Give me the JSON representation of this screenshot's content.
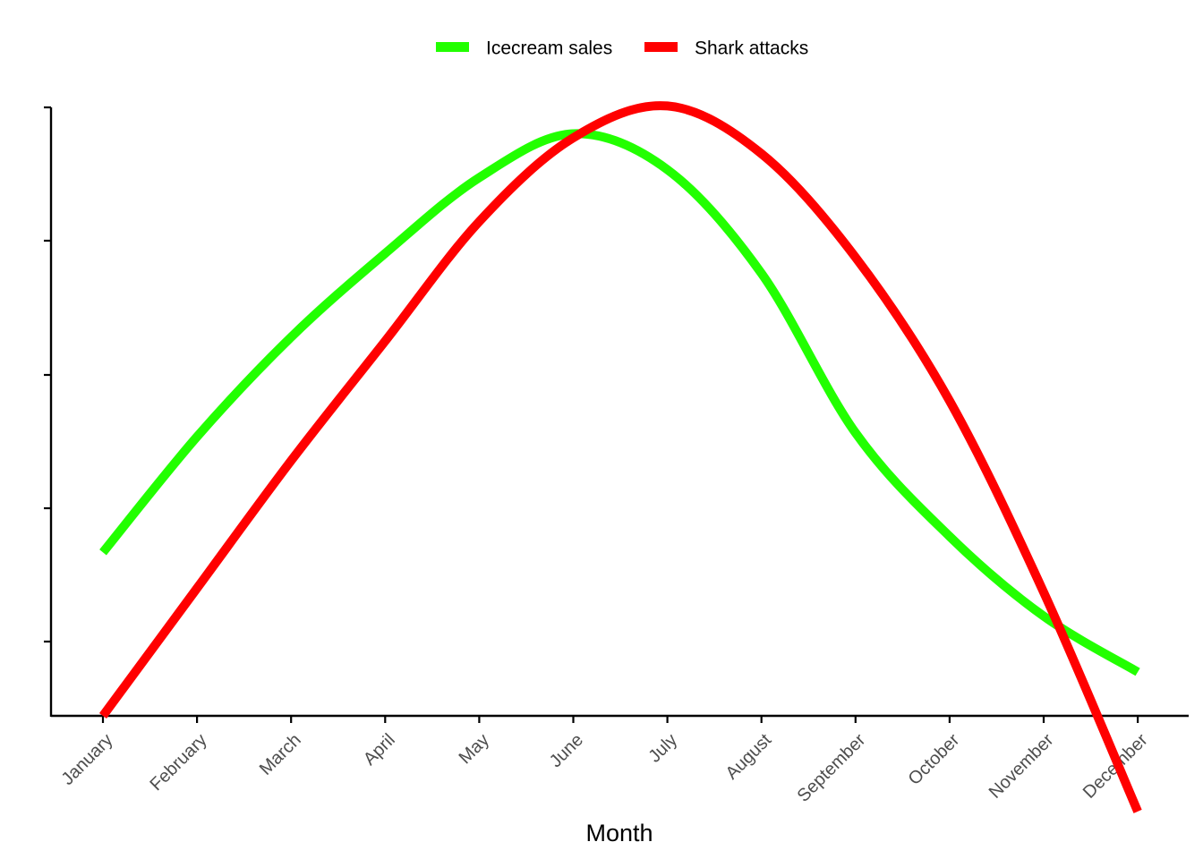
{
  "chart_data": {
    "type": "line",
    "title": "",
    "xlabel": "Month",
    "ylabel": "",
    "categories": [
      "January",
      "February",
      "March",
      "April",
      "May",
      "June",
      "July",
      "August",
      "September",
      "October",
      "November",
      "December"
    ],
    "y_tick_labels_visible": false,
    "y_tick_count": 5,
    "grid": false,
    "legend_position": "top",
    "series": [
      {
        "name": "Icecream sales",
        "color": "#22ff00",
        "values": [
          2.8,
          4.25,
          5.5,
          6.55,
          7.5,
          8.05,
          7.6,
          6.3,
          4.3,
          3.0,
          2.0,
          1.3
        ]
      },
      {
        "name": "Shark attacks",
        "color": "#ff0000",
        "values": [
          0.75,
          2.35,
          3.95,
          5.45,
          6.95,
          8.0,
          8.4,
          7.8,
          6.5,
          4.7,
          2.3,
          -0.45
        ]
      }
    ]
  }
}
